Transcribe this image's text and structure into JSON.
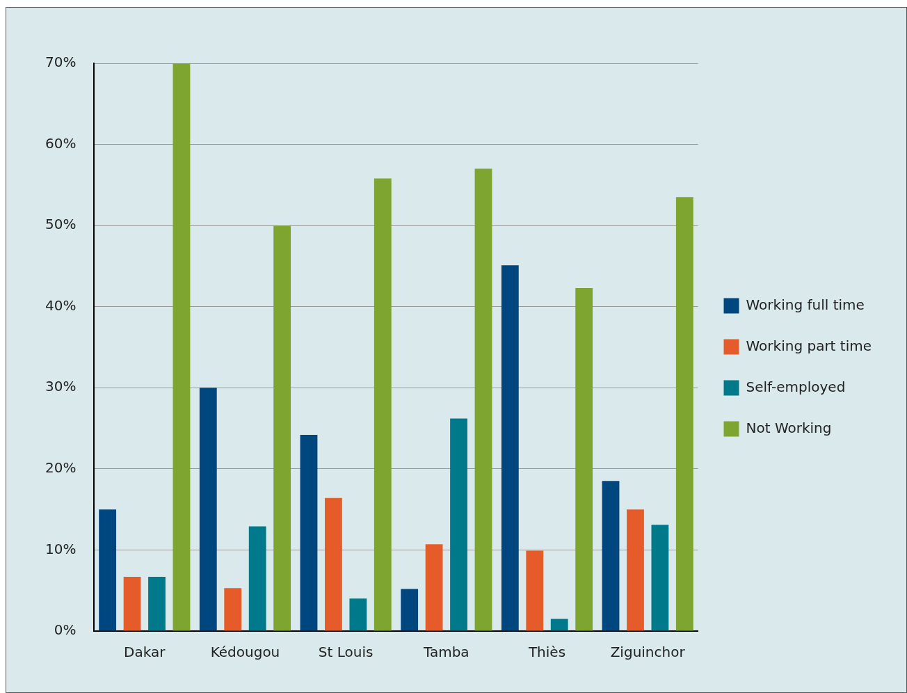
{
  "chart_data": {
    "type": "bar",
    "categories": [
      "Dakar",
      "Kédougou",
      "St Louis",
      "Tamba",
      "Thiès",
      "Ziguinchor"
    ],
    "series": [
      {
        "name": "Working full time",
        "color": "#00467f",
        "values": [
          15,
          30,
          24.2,
          5.2,
          45.1,
          18.5
        ]
      },
      {
        "name": "Working part time",
        "color": "#e65b2a",
        "values": [
          6.7,
          5.3,
          16.4,
          10.7,
          9.9,
          15
        ]
      },
      {
        "name": "Self-employed",
        "color": "#007a8a",
        "values": [
          6.7,
          12.9,
          4,
          26.2,
          1.5,
          13.1
        ]
      },
      {
        "name": "Not Working",
        "color": "#7ea52f",
        "values": [
          70,
          50,
          55.8,
          57,
          42.3,
          53.5
        ]
      }
    ],
    "ylim": [
      0,
      70
    ],
    "yticks": [
      {
        "value": 0,
        "label": "0%"
      },
      {
        "value": 10,
        "label": "10%"
      },
      {
        "value": 20,
        "label": "20%"
      },
      {
        "value": 30,
        "label": "30%"
      },
      {
        "value": 40,
        "label": "40%"
      },
      {
        "value": 50,
        "label": "50%"
      },
      {
        "value": 60,
        "label": "60%"
      },
      {
        "value": 70,
        "label": "70%"
      }
    ],
    "grid": "y",
    "legend": "right"
  }
}
